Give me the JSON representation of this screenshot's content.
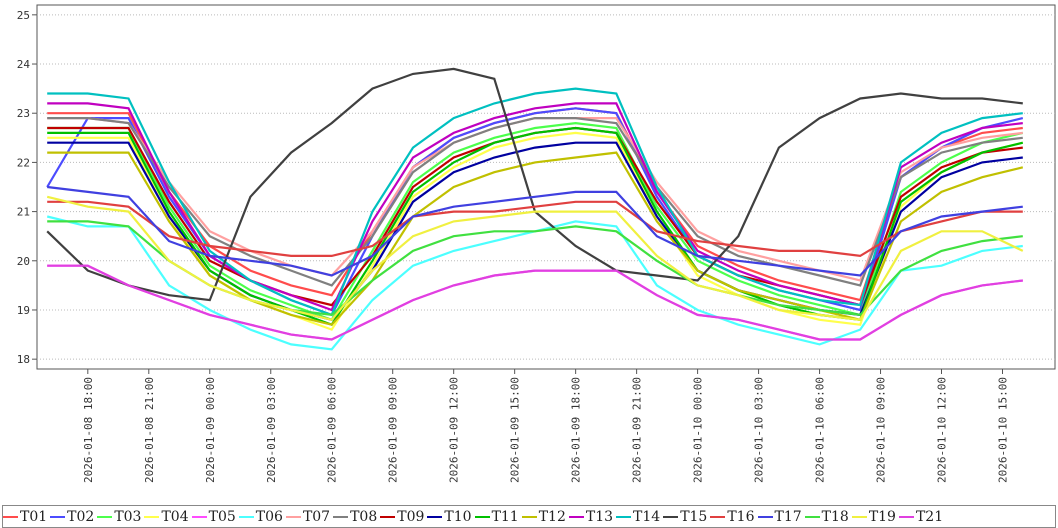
{
  "chart_data": {
    "type": "line",
    "x": [
      "2026-01-08 16:00",
      "2026-01-08 18:00",
      "2026-01-08 20:00",
      "2026-01-08 22:00",
      "2026-01-09 00:00",
      "2026-01-09 02:00",
      "2026-01-09 04:00",
      "2026-01-09 06:00",
      "2026-01-09 08:00",
      "2026-01-09 10:00",
      "2026-01-09 12:00",
      "2026-01-09 14:00",
      "2026-01-09 16:00",
      "2026-01-09 18:00",
      "2026-01-09 20:00",
      "2026-01-09 22:00",
      "2026-01-10 00:00",
      "2026-01-10 02:00",
      "2026-01-10 04:00",
      "2026-01-10 06:00",
      "2026-01-10 08:00",
      "2026-01-10 10:00",
      "2026-01-10 12:00",
      "2026-01-10 14:00",
      "2026-01-10 16:00"
    ],
    "xlim": [
      "2026-01-08 15:30",
      "2026-01-10 17:35"
    ],
    "xticks": [
      "2026-01-08 18:00",
      "2026-01-08 21:00",
      "2026-01-09 00:00",
      "2026-01-09 03:00",
      "2026-01-09 06:00",
      "2026-01-09 09:00",
      "2026-01-09 12:00",
      "2026-01-09 15:00",
      "2026-01-09 18:00",
      "2026-01-09 21:00",
      "2026-01-10 00:00",
      "2026-01-10 03:00",
      "2026-01-10 06:00",
      "2026-01-10 09:00",
      "2026-01-10 12:00",
      "2026-01-10 15:00"
    ],
    "ylim": [
      17.8,
      25.2
    ],
    "yticks": [
      18,
      19,
      20,
      21,
      22,
      23,
      24,
      25
    ],
    "grid": true,
    "series": [
      {
        "name": "T01",
        "color": "#ff4c4c",
        "values": [
          23.0,
          23.0,
          23.0,
          21.4,
          20.3,
          19.8,
          19.5,
          19.3,
          20.6,
          21.9,
          22.5,
          22.8,
          23.0,
          23.1,
          23.0,
          21.4,
          20.3,
          19.9,
          19.6,
          19.4,
          19.2,
          21.7,
          22.3,
          22.6,
          22.7
        ]
      },
      {
        "name": "T02",
        "color": "#4c4cff",
        "values": [
          21.5,
          22.9,
          22.9,
          21.3,
          20.1,
          19.6,
          19.2,
          18.9,
          20.5,
          21.9,
          22.5,
          22.8,
          23.0,
          23.1,
          23.0,
          21.3,
          20.1,
          19.7,
          19.4,
          19.2,
          19.0,
          21.7,
          22.3,
          22.7,
          22.9
        ]
      },
      {
        "name": "T03",
        "color": "#4cff4c",
        "values": [
          22.7,
          22.7,
          22.7,
          21.1,
          19.9,
          19.4,
          19.1,
          18.8,
          20.2,
          21.6,
          22.2,
          22.5,
          22.7,
          22.8,
          22.7,
          21.1,
          20.0,
          19.6,
          19.3,
          19.1,
          18.9,
          21.4,
          22.0,
          22.4,
          22.6
        ]
      },
      {
        "name": "T04",
        "color": "#ffff4c",
        "values": [
          22.5,
          22.5,
          22.5,
          20.9,
          19.7,
          19.2,
          18.9,
          18.6,
          19.9,
          21.3,
          21.9,
          22.3,
          22.5,
          22.6,
          22.5,
          20.9,
          19.7,
          19.3,
          19.0,
          18.8,
          18.7,
          21.1,
          21.8,
          22.2,
          22.4
        ]
      },
      {
        "name": "T05",
        "color": "#ff4cff",
        "values": [
          19.9,
          19.9,
          19.5,
          19.2,
          18.9,
          18.7,
          18.5,
          18.4,
          18.8,
          19.2,
          19.5,
          19.7,
          19.8,
          19.8,
          19.8,
          19.3,
          18.9,
          18.8,
          18.6,
          18.4,
          18.4,
          18.9,
          19.3,
          19.5,
          19.6
        ]
      },
      {
        "name": "T06",
        "color": "#4cffff",
        "values": [
          20.9,
          20.7,
          20.7,
          19.5,
          19.0,
          18.6,
          18.3,
          18.2,
          19.2,
          19.9,
          20.2,
          20.4,
          20.6,
          20.8,
          20.7,
          19.5,
          19.0,
          18.7,
          18.5,
          18.3,
          18.6,
          19.8,
          19.9,
          20.2,
          20.3
        ]
      },
      {
        "name": "T07",
        "color": "#ffa0a0",
        "values": [
          22.9,
          22.9,
          22.8,
          21.6,
          20.6,
          20.2,
          19.9,
          19.7,
          20.6,
          21.9,
          22.4,
          22.7,
          22.9,
          22.9,
          22.9,
          21.6,
          20.6,
          20.2,
          20.0,
          19.8,
          19.6,
          21.8,
          22.3,
          22.5,
          22.6
        ]
      },
      {
        "name": "T08",
        "color": "#808080",
        "values": [
          22.9,
          22.9,
          22.8,
          21.5,
          20.5,
          20.1,
          19.8,
          19.5,
          20.5,
          21.8,
          22.4,
          22.7,
          22.9,
          22.9,
          22.8,
          21.5,
          20.5,
          20.1,
          19.9,
          19.7,
          19.5,
          21.7,
          22.2,
          22.4,
          22.5
        ]
      },
      {
        "name": "T09",
        "color": "#c00000",
        "values": [
          22.7,
          22.7,
          22.7,
          21.2,
          20.0,
          19.6,
          19.3,
          19.1,
          20.1,
          21.5,
          22.1,
          22.4,
          22.6,
          22.7,
          22.6,
          21.2,
          20.1,
          19.7,
          19.5,
          19.3,
          19.1,
          21.3,
          21.9,
          22.2,
          22.3
        ]
      },
      {
        "name": "T10",
        "color": "#0000a0",
        "values": [
          22.4,
          22.4,
          22.4,
          20.9,
          19.8,
          19.3,
          19.0,
          18.8,
          19.8,
          21.2,
          21.8,
          22.1,
          22.3,
          22.4,
          22.4,
          20.9,
          19.8,
          19.4,
          19.2,
          19.0,
          18.9,
          21.0,
          21.7,
          22.0,
          22.1
        ]
      },
      {
        "name": "T11",
        "color": "#00c000",
        "values": [
          22.6,
          22.6,
          22.6,
          21.0,
          19.8,
          19.3,
          19.0,
          18.7,
          20.0,
          21.4,
          22.0,
          22.4,
          22.6,
          22.7,
          22.6,
          21.0,
          19.8,
          19.4,
          19.1,
          18.9,
          18.8,
          21.2,
          21.8,
          22.2,
          22.4
        ]
      },
      {
        "name": "T12",
        "color": "#c0c000",
        "values": [
          22.2,
          22.2,
          22.2,
          20.8,
          19.7,
          19.2,
          18.9,
          18.7,
          19.6,
          20.9,
          21.5,
          21.8,
          22.0,
          22.1,
          22.2,
          20.8,
          19.8,
          19.4,
          19.2,
          19.0,
          18.8,
          20.8,
          21.4,
          21.7,
          21.9
        ]
      },
      {
        "name": "T13",
        "color": "#c000c0",
        "values": [
          23.2,
          23.2,
          23.1,
          21.4,
          20.1,
          19.6,
          19.3,
          19.0,
          20.8,
          22.1,
          22.6,
          22.9,
          23.1,
          23.2,
          23.2,
          21.4,
          20.2,
          19.8,
          19.5,
          19.3,
          19.1,
          21.9,
          22.4,
          22.7,
          22.8
        ]
      },
      {
        "name": "T14",
        "color": "#00c0c0",
        "values": [
          23.4,
          23.4,
          23.3,
          21.6,
          20.2,
          19.6,
          19.2,
          18.9,
          21.0,
          22.3,
          22.9,
          23.2,
          23.4,
          23.5,
          23.4,
          21.5,
          20.1,
          19.7,
          19.4,
          19.2,
          19.1,
          22.0,
          22.6,
          22.9,
          23.0
        ]
      },
      {
        "name": "T15",
        "color": "#404040",
        "values": [
          20.6,
          19.8,
          19.5,
          19.3,
          19.2,
          21.3,
          22.2,
          22.8,
          23.5,
          23.8,
          23.9,
          23.7,
          21.0,
          20.3,
          19.8,
          19.7,
          19.6,
          20.5,
          22.3,
          22.9,
          23.3,
          23.4,
          23.3,
          23.3,
          23.2
        ]
      },
      {
        "name": "T16",
        "color": "#e04040",
        "values": [
          21.2,
          21.2,
          21.1,
          20.5,
          20.3,
          20.2,
          20.1,
          20.1,
          20.3,
          20.9,
          21.0,
          21.0,
          21.1,
          21.2,
          21.2,
          20.6,
          20.4,
          20.3,
          20.2,
          20.2,
          20.1,
          20.6,
          20.8,
          21.0,
          21.0
        ]
      },
      {
        "name": "T17",
        "color": "#4040e0",
        "values": [
          21.5,
          21.4,
          21.3,
          20.4,
          20.1,
          20.0,
          19.9,
          19.7,
          20.1,
          20.9,
          21.1,
          21.2,
          21.3,
          21.4,
          21.4,
          20.5,
          20.1,
          20.0,
          19.9,
          19.8,
          19.7,
          20.6,
          20.9,
          21.0,
          21.1
        ]
      },
      {
        "name": "T18",
        "color": "#40e040",
        "values": [
          20.8,
          20.8,
          20.7,
          20.0,
          19.5,
          19.2,
          19.0,
          18.9,
          19.6,
          20.2,
          20.5,
          20.6,
          20.6,
          20.7,
          20.6,
          20.0,
          19.5,
          19.3,
          19.1,
          19.0,
          18.9,
          19.8,
          20.2,
          20.4,
          20.5
        ]
      },
      {
        "name": "T19",
        "color": "#f0f040",
        "values": [
          21.3,
          21.1,
          21.0,
          20.0,
          19.5,
          19.2,
          19.0,
          18.8,
          19.8,
          20.5,
          20.8,
          20.9,
          21.0,
          21.0,
          21.0,
          20.1,
          19.5,
          19.3,
          19.0,
          18.9,
          18.8,
          20.2,
          20.6,
          20.6,
          20.2
        ]
      },
      {
        "name": "T21",
        "color": "#e040e0",
        "values": [
          19.9,
          19.9,
          19.5,
          19.2,
          18.9,
          18.7,
          18.5,
          18.4,
          18.8,
          19.2,
          19.5,
          19.7,
          19.8,
          19.8,
          19.8,
          19.3,
          18.9,
          18.8,
          18.6,
          18.4,
          18.4,
          18.9,
          19.3,
          19.5,
          19.6
        ]
      }
    ]
  }
}
